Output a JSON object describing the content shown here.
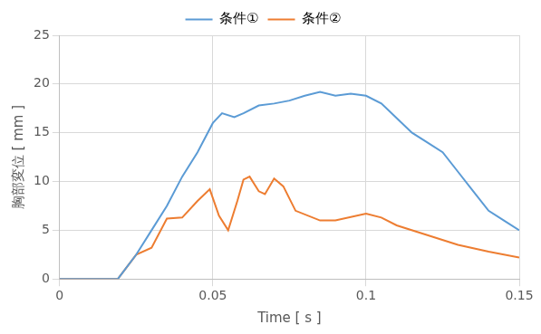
{
  "chart_data": {
    "type": "line",
    "x_label": "Time [ s ]",
    "y_label": "胸部変位 [ mm ]",
    "xlim": [
      0,
      0.15
    ],
    "xticks": [
      0,
      0.05,
      0.1,
      0.15
    ],
    "ylim": [
      0,
      25
    ],
    "yticks": [
      0,
      5,
      10,
      15,
      20,
      25
    ],
    "grid": true,
    "legend": "top",
    "series": [
      {
        "name": "条件①",
        "color": "#5b9bd5",
        "x": [
          0,
          0.019,
          0.025,
          0.03,
          0.035,
          0.04,
          0.045,
          0.05,
          0.053,
          0.057,
          0.06,
          0.065,
          0.07,
          0.075,
          0.08,
          0.085,
          0.09,
          0.095,
          0.1,
          0.105,
          0.11,
          0.115,
          0.12,
          0.125,
          0.13,
          0.135,
          0.14,
          0.145,
          0.15
        ],
        "values": [
          0,
          0,
          2.5,
          5,
          7.5,
          10.5,
          13,
          16,
          17,
          16.6,
          17,
          17.8,
          18,
          18.3,
          18.8,
          19.2,
          18.8,
          19,
          18.8,
          18,
          16.5,
          15,
          14,
          13,
          11,
          9,
          7,
          6,
          5
        ]
      },
      {
        "name": "条件②",
        "color": "#ed7d31",
        "x": [
          0,
          0.019,
          0.025,
          0.03,
          0.035,
          0.04,
          0.045,
          0.049,
          0.052,
          0.055,
          0.058,
          0.06,
          0.062,
          0.065,
          0.067,
          0.07,
          0.073,
          0.077,
          0.085,
          0.09,
          0.1,
          0.105,
          0.11,
          0.12,
          0.13,
          0.14,
          0.15
        ],
        "values": [
          0,
          0,
          2.5,
          3.2,
          6.2,
          6.3,
          8,
          9.2,
          6.5,
          5,
          8,
          10.2,
          10.5,
          9,
          8.7,
          10.3,
          9.5,
          7,
          6,
          6,
          6.7,
          6.3,
          5.5,
          4.5,
          3.5,
          2.8,
          2.2
        ]
      }
    ]
  }
}
